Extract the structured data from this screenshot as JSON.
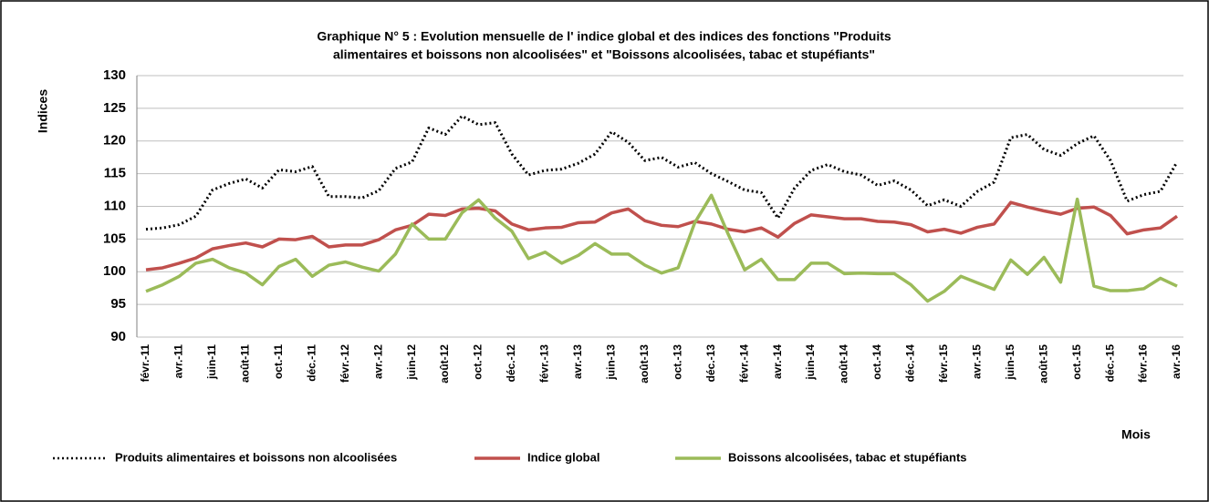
{
  "chart_data": {
    "type": "line",
    "title": "Graphique N° 5 : Evolution mensuelle de l' indice global  et des indices des fonctions \"Produits",
    "subtitle": "alimentaires et boissons  non alcoolisées\" et \"Boissons alcoolisées, tabac et stupéfiants\"",
    "y_label": "Indices",
    "x_label": "Mois",
    "categories": [
      "févr.-11",
      null,
      "avr.-11",
      null,
      "juin-11",
      null,
      "août-11",
      null,
      "oct.-11",
      null,
      "déc.-11",
      null,
      "févr.-12",
      null,
      "avr.-12",
      null,
      "juin-12",
      null,
      "août-12",
      null,
      "oct.-12",
      null,
      "déc.-12",
      null,
      "févr.-13",
      null,
      "avr.-13",
      null,
      "juin-13",
      null,
      "août-13",
      null,
      "oct.-13",
      null,
      "déc.-13",
      null,
      "févr.-14",
      null,
      "avr.-14",
      null,
      "juin-14",
      null,
      "août-14",
      null,
      "oct.-14",
      null,
      "déc.-14",
      null,
      "févr.-15",
      null,
      "avr.-15",
      null,
      "juin-15",
      null,
      "août-15",
      null,
      "oct.-15",
      null,
      "déc.-15",
      null,
      "févr.-16",
      null,
      "avr.-16"
    ],
    "series": [
      {
        "name": "Produits alimentaires et boissons non alcoolisées",
        "color": "#000000",
        "style": "dotted",
        "values": [
          106.5,
          106.7,
          107.2,
          108.5,
          112.5,
          113.5,
          114.2,
          112.8,
          115.6,
          115.3,
          116.1,
          111.5,
          111.5,
          111.3,
          112.4,
          115.8,
          116.8,
          122,
          121,
          123.8,
          122.5,
          122.8,
          118,
          114.8,
          115.5,
          115.7,
          116.6,
          118,
          121.4,
          119.8,
          117,
          117.5,
          116,
          116.7,
          115,
          113.8,
          112.5,
          112.1,
          108.2,
          112.8,
          115.5,
          116.4,
          115.3,
          114.8,
          113.2,
          113.9,
          112.5,
          110.1,
          111,
          110,
          112.3,
          113.7,
          120.5,
          121,
          118.7,
          117.8,
          119.6,
          120.8,
          117,
          110.8,
          111.8,
          112.3,
          116.8
        ]
      },
      {
        "name": "Indice global",
        "color": "#c0504d",
        "style": "solid",
        "values": [
          100.3,
          100.6,
          101.3,
          102.1,
          103.5,
          104,
          104.4,
          103.8,
          105,
          104.9,
          105.4,
          103.8,
          104.1,
          104.1,
          104.9,
          106.4,
          107.1,
          108.8,
          108.6,
          109.6,
          109.7,
          109.3,
          107.3,
          106.4,
          106.7,
          106.8,
          107.5,
          107.6,
          109,
          109.6,
          107.8,
          107.1,
          106.9,
          107.7,
          107.3,
          106.5,
          106.1,
          106.7,
          105.3,
          107.4,
          108.7,
          108.4,
          108.1,
          108.1,
          107.7,
          107.6,
          107.2,
          106.1,
          106.5,
          105.9,
          106.8,
          107.3,
          110.6,
          109.9,
          109.3,
          108.8,
          109.7,
          109.9,
          108.6,
          105.8,
          106.4,
          106.7,
          108.5
        ]
      },
      {
        "name": "Boissons alcoolisées, tabac et stupéfiants",
        "color": "#9bbb59",
        "style": "solid",
        "values": [
          97,
          98,
          99.3,
          101.3,
          101.9,
          100.6,
          99.8,
          98,
          100.8,
          101.9,
          99.3,
          101,
          101.5,
          100.7,
          100.1,
          102.7,
          107.3,
          105,
          105,
          109,
          111,
          108.2,
          106.2,
          102,
          103,
          101.3,
          102.5,
          104.3,
          102.7,
          102.7,
          101,
          99.8,
          100.6,
          107.5,
          111.7,
          105.8,
          100.3,
          101.9,
          98.8,
          98.8,
          101.3,
          101.3,
          99.7,
          99.8,
          99.7,
          99.7,
          98,
          95.5,
          97,
          99.3,
          98.3,
          97.3,
          101.8,
          99.6,
          102.2,
          98.4,
          111.1,
          97.8,
          97.1,
          97.1,
          97.4,
          99,
          97.8
        ]
      }
    ],
    "ylim": [
      90,
      130
    ],
    "yticks": [
      90,
      95,
      100,
      105,
      110,
      115,
      120,
      125,
      130
    ],
    "grid": true,
    "legend": "bottom"
  }
}
